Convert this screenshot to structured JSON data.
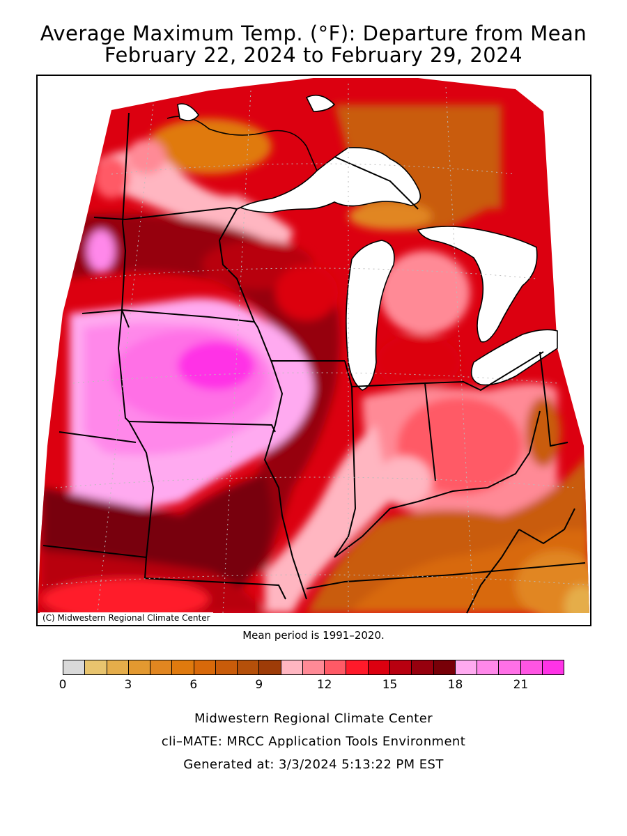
{
  "title_line1": "Average Maximum Temp. (°F): Departure from Mean",
  "title_line2": "February 22, 2024 to February 29, 2024",
  "credit": "(C) Midwestern Regional Climate Center",
  "mean_period": "Mean period is 1991–2020.",
  "legend": {
    "ticks": [
      "0",
      "3",
      "6",
      "9",
      "12",
      "15",
      "18",
      "21"
    ],
    "colors": [
      "#d9d9d9",
      "#e8c46e",
      "#e5ad4a",
      "#e39930",
      "#e18620",
      "#e07a0e",
      "#d8690a",
      "#c95c0a",
      "#b5500a",
      "#9e3c08",
      "#ffb6c1",
      "#ff8a96",
      "#ff5a66",
      "#ff1a2a",
      "#dc0010",
      "#b80010",
      "#96000e",
      "#780008",
      "#ffaaf0",
      "#ff88ea",
      "#ff70e6",
      "#ff55e3",
      "#ff33e6"
    ]
  },
  "footer_line1": "Midwestern Regional Climate Center",
  "footer_line2": "cli–MATE: MRCC Application Tools Environment",
  "footer_line3": "Generated at: 3/3/2024 5:13:22 PM EST"
}
